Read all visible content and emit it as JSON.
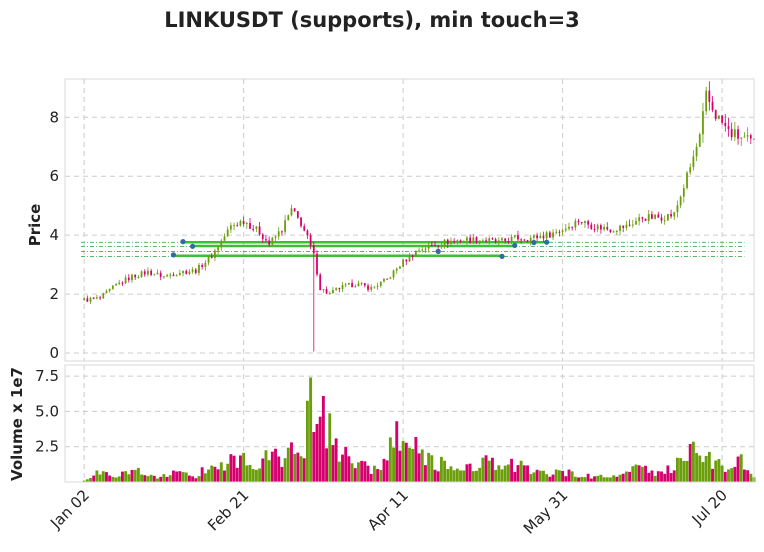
{
  "chart_data": {
    "type": "candlestick",
    "title": "LINKUSDT (supports), min touch=3",
    "price_panel": {
      "ylabel": "Price",
      "yticks": [
        "0",
        "2",
        "4",
        "6",
        "8"
      ],
      "ylim": [
        0,
        9.3
      ],
      "grid": true
    },
    "volume_panel": {
      "ylabel": "Volume x 1e7",
      "yticks": [
        "2.5",
        "5.0",
        "7.5"
      ],
      "ylim": [
        0,
        8.0
      ],
      "grid": true
    },
    "x_tick_labels": [
      "Jan 02",
      "Feb 21",
      "Apr 11",
      "May 31",
      "Jul 20"
    ],
    "x_tick_day_index": [
      0,
      50,
      100,
      150,
      200
    ],
    "x_range_days": [
      -6,
      210
    ],
    "support_levels": [
      3.28,
      3.45,
      3.62,
      3.76
    ],
    "support_touches": [
      {
        "day": 28,
        "price": 3.33
      },
      {
        "day": 31,
        "price": 3.78
      },
      {
        "day": 34,
        "price": 3.62
      },
      {
        "day": 111,
        "price": 3.45
      },
      {
        "day": 131,
        "price": 3.28
      },
      {
        "day": 135,
        "price": 3.65
      },
      {
        "day": 141,
        "price": 3.75
      },
      {
        "day": 145,
        "price": 3.76
      }
    ],
    "price_anchors": [
      [
        0,
        1.8
      ],
      [
        5,
        1.85
      ],
      [
        10,
        2.3
      ],
      [
        15,
        2.6
      ],
      [
        20,
        2.75
      ],
      [
        25,
        2.6
      ],
      [
        30,
        2.75
      ],
      [
        35,
        2.8
      ],
      [
        40,
        3.3
      ],
      [
        43,
        3.8
      ],
      [
        46,
        4.3
      ],
      [
        50,
        4.5
      ],
      [
        55,
        4.1
      ],
      [
        58,
        3.7
      ],
      [
        62,
        4.2
      ],
      [
        65,
        4.85
      ],
      [
        68,
        4.4
      ],
      [
        70,
        3.9
      ],
      [
        72,
        3.3
      ],
      [
        74,
        2.2
      ],
      [
        77,
        2.0
      ],
      [
        80,
        2.2
      ],
      [
        85,
        2.35
      ],
      [
        90,
        2.2
      ],
      [
        95,
        2.5
      ],
      [
        100,
        3.1
      ],
      [
        105,
        3.5
      ],
      [
        110,
        3.7
      ],
      [
        115,
        3.8
      ],
      [
        120,
        3.85
      ],
      [
        125,
        3.85
      ],
      [
        130,
        3.75
      ],
      [
        135,
        3.9
      ],
      [
        140,
        3.9
      ],
      [
        145,
        4.0
      ],
      [
        150,
        4.2
      ],
      [
        155,
        4.5
      ],
      [
        160,
        4.3
      ],
      [
        165,
        4.2
      ],
      [
        170,
        4.3
      ],
      [
        175,
        4.6
      ],
      [
        180,
        4.6
      ],
      [
        185,
        4.7
      ],
      [
        190,
        6.3
      ],
      [
        193,
        7.3
      ],
      [
        195,
        8.7
      ],
      [
        198,
        8.1
      ],
      [
        202,
        7.5
      ],
      [
        206,
        7.3
      ],
      [
        210,
        7.1
      ]
    ],
    "volume_anchors": [
      [
        0,
        0.1
      ],
      [
        5,
        0.7
      ],
      [
        10,
        0.5
      ],
      [
        15,
        0.9
      ],
      [
        20,
        0.5
      ],
      [
        25,
        0.4
      ],
      [
        30,
        0.7
      ],
      [
        35,
        0.4
      ],
      [
        40,
        1.3
      ],
      [
        45,
        1.5
      ],
      [
        50,
        1.6
      ],
      [
        55,
        0.9
      ],
      [
        58,
        2.0
      ],
      [
        62,
        1.5
      ],
      [
        66,
        2.8
      ],
      [
        69,
        1.7
      ],
      [
        71,
        7.4
      ],
      [
        72,
        3.5
      ],
      [
        74,
        4.5
      ],
      [
        77,
        3.6
      ],
      [
        80,
        2.0
      ],
      [
        85,
        1.3
      ],
      [
        90,
        1.0
      ],
      [
        95,
        1.2
      ],
      [
        98,
        4.2
      ],
      [
        100,
        3.0
      ],
      [
        103,
        2.4
      ],
      [
        106,
        2.0
      ],
      [
        110,
        1.4
      ],
      [
        115,
        1.0
      ],
      [
        120,
        1.1
      ],
      [
        125,
        1.5
      ],
      [
        130,
        1.0
      ],
      [
        135,
        1.2
      ],
      [
        140,
        0.9
      ],
      [
        145,
        0.5
      ],
      [
        150,
        0.7
      ],
      [
        155,
        0.5
      ],
      [
        160,
        0.4
      ],
      [
        165,
        0.3
      ],
      [
        170,
        0.8
      ],
      [
        175,
        0.9
      ],
      [
        180,
        0.7
      ],
      [
        185,
        1.1
      ],
      [
        188,
        1.6
      ],
      [
        191,
        3.0
      ],
      [
        194,
        2.0
      ],
      [
        197,
        1.3
      ],
      [
        201,
        1.2
      ],
      [
        205,
        1.7
      ],
      [
        210,
        0.4
      ]
    ],
    "colors": {
      "up": "#6a9e0a",
      "down": "#d5006d",
      "support_line": "#38c038",
      "support_dash": "#1f9e3a",
      "touch_marker": "#2c6e9e",
      "grid": "#cccccc",
      "frame": "#d8d8d8"
    }
  }
}
